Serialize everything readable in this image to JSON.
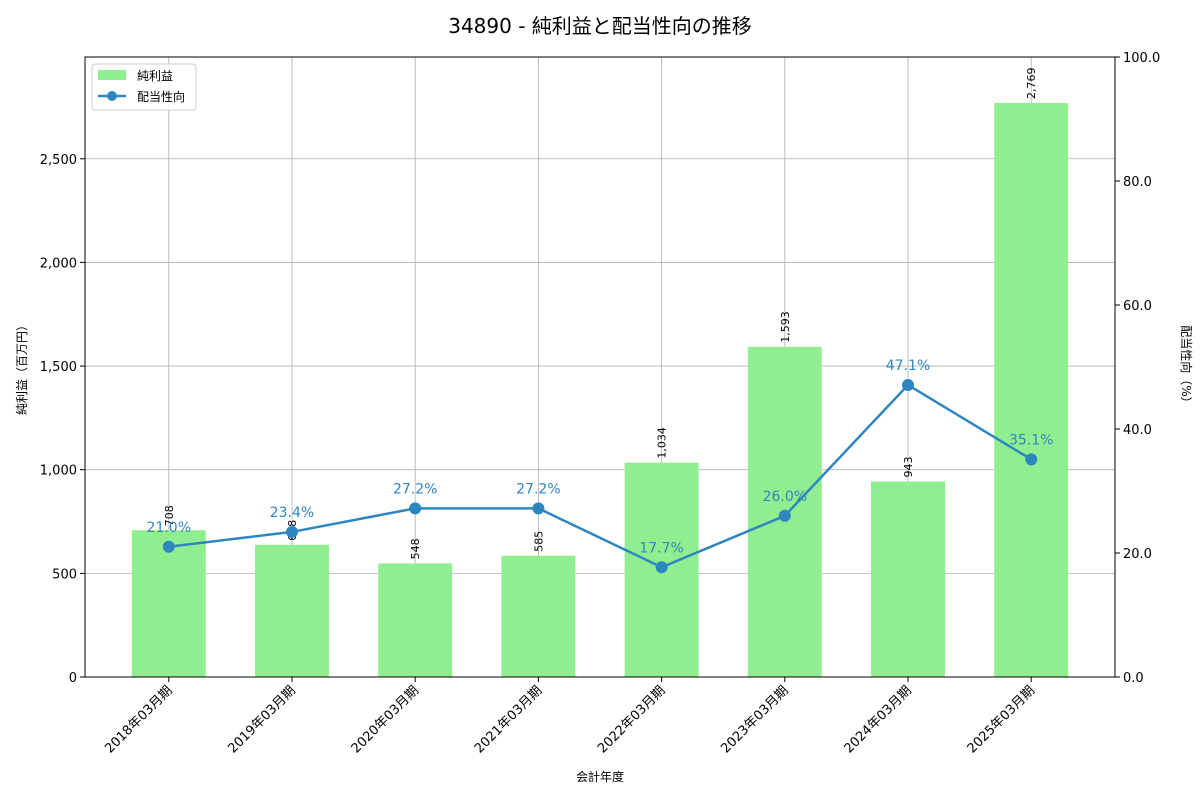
{
  "chart_data": {
    "type": "bar+line",
    "title": "34890 - 純利益と配当性向の推移",
    "xlabel": "会計年度",
    "ylabel": "純利益（百万円）",
    "y2label": "配当性向（%）",
    "categories": [
      "2018年03月期",
      "2019年03月期",
      "2020年03月期",
      "2021年03月期",
      "2022年03月期",
      "2023年03月期",
      "2024年03月期",
      "2025年03月期"
    ],
    "series": [
      {
        "name": "純利益",
        "type": "bar",
        "axis": "left",
        "color": "#90ee90",
        "values": [
          708,
          638,
          548,
          585,
          1034,
          1593,
          943,
          2769
        ],
        "labels": [
          "708",
          "638",
          "548",
          "585",
          "1,034",
          "1,593",
          "943",
          "2,769"
        ]
      },
      {
        "name": "配当性向",
        "type": "line",
        "axis": "right",
        "color": "#2e86c1",
        "marker": "circle",
        "values": [
          21.0,
          23.4,
          27.2,
          27.2,
          17.7,
          26.0,
          47.1,
          35.1
        ],
        "labels": [
          "21.0%",
          "23.4%",
          "27.2%",
          "27.2%",
          "17.7%",
          "26.0%",
          "47.1%",
          "35.1%"
        ]
      }
    ],
    "ylim": [
      0,
      2991
    ],
    "y2lim": [
      0,
      100
    ],
    "yticks": [
      0,
      500,
      1000,
      1500,
      2000,
      2500
    ],
    "ytick_labels": [
      "0",
      "500",
      "1,000",
      "1,500",
      "2,000",
      "2,500"
    ],
    "y2ticks": [
      0,
      20,
      40,
      60,
      80,
      100
    ],
    "y2tick_labels": [
      "0.0",
      "20.0",
      "40.0",
      "60.0",
      "80.0",
      "100.0"
    ],
    "grid": true,
    "legend_position": "upper left"
  }
}
